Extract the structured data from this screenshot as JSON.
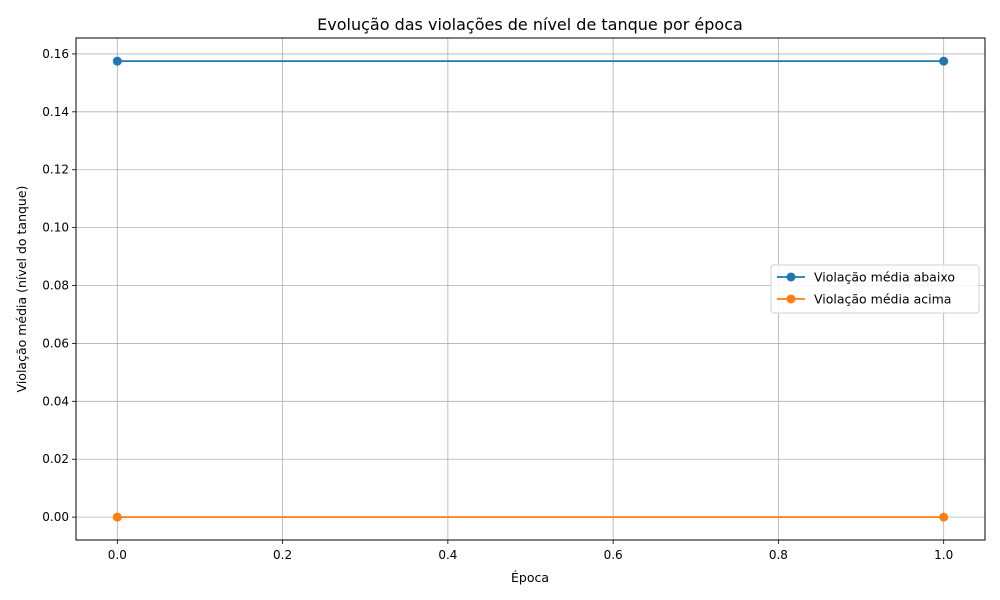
{
  "chart_data": {
    "type": "line",
    "title": "Evolução das violações de nível de tanque por época",
    "xlabel": "Época",
    "ylabel": "Violação média (nível do tanque)",
    "xlim": [
      -0.05,
      1.05
    ],
    "ylim": [
      -0.0079,
      0.1655
    ],
    "x_ticks": [
      "0.0",
      "0.2",
      "0.4",
      "0.6",
      "0.8",
      "1.0"
    ],
    "y_ticks": [
      "0.00",
      "0.02",
      "0.04",
      "0.06",
      "0.08",
      "0.10",
      "0.12",
      "0.14",
      "0.16"
    ],
    "grid": true,
    "legend_position": "center-right",
    "series": [
      {
        "name": "Violação média abaixo",
        "color": "#1f77b4",
        "x": [
          0,
          1
        ],
        "y": [
          0.1575,
          0.1575
        ]
      },
      {
        "name": "Violação média acima",
        "color": "#ff7f0e",
        "x": [
          0,
          1
        ],
        "y": [
          0.0,
          0.0
        ]
      }
    ]
  }
}
